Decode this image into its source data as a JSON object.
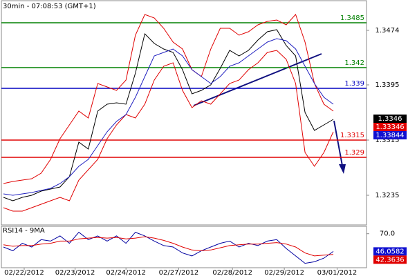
{
  "chart_data": [
    {
      "type": "line",
      "title": "30min - 07:08:53 (GMT+1)",
      "x": [
        0,
        1,
        2,
        3,
        4,
        5,
        6,
        7,
        8,
        9,
        10,
        11,
        12,
        13,
        14,
        15,
        16,
        17,
        18,
        19,
        20,
        21,
        22,
        23,
        24,
        25,
        26,
        27,
        28,
        29,
        30,
        31,
        32,
        33,
        34,
        35
      ],
      "xlim": [
        0,
        35
      ],
      "xticks": [
        {
          "value": 2.2,
          "label": "02/22/2012"
        },
        {
          "value": 7.6,
          "label": "02/23/2012"
        },
        {
          "value": 13,
          "label": "02/24/2012"
        },
        {
          "value": 18.6,
          "label": "02/27/2012"
        },
        {
          "value": 24.3,
          "label": "02/28/2012"
        },
        {
          "value": 29.8,
          "label": "02/29/2012"
        },
        {
          "value": 35.4,
          "label": "03/01/2012"
        }
      ],
      "ylim": [
        1.3192,
        1.3517
      ],
      "yticks": [
        1.3235,
        1.3315,
        1.3395,
        1.3474
      ],
      "series": [
        {
          "color": "#000000",
          "values": [
            1.3232,
            1.3227,
            1.3232,
            1.3235,
            1.3241,
            1.3244,
            1.3247,
            1.3262,
            1.3312,
            1.3302,
            1.3357,
            1.3367,
            1.3369,
            1.3367,
            1.3412,
            1.3469,
            1.3455,
            1.3447,
            1.3442,
            1.3417,
            1.3382,
            1.3387,
            1.3395,
            1.3419,
            1.3445,
            1.3437,
            1.3445,
            1.346,
            1.3472,
            1.3475,
            1.3452,
            1.3437,
            1.3355,
            1.3329,
            1.3337,
            1.3345
          ]
        },
        {
          "color": "#e00000",
          "values": [
            1.3252,
            1.3255,
            1.3257,
            1.3259,
            1.3267,
            1.3287,
            1.3317,
            1.3337,
            1.3357,
            1.3347,
            1.3397,
            1.3392,
            1.3387,
            1.3402,
            1.3467,
            1.3497,
            1.3492,
            1.3477,
            1.3457,
            1.3447,
            1.3417,
            1.3407,
            1.3447,
            1.3477,
            1.3477,
            1.3467,
            1.3472,
            1.3482,
            1.3487,
            1.3489,
            1.3482,
            1.3497,
            1.3457,
            1.3397,
            1.3367,
            1.3357
          ]
        },
        {
          "color": "#e00000",
          "values": [
            1.3217,
            1.3212,
            1.3212,
            1.3217,
            1.3222,
            1.3227,
            1.3232,
            1.3227,
            1.3257,
            1.3272,
            1.3287,
            1.3317,
            1.3337,
            1.3352,
            1.3347,
            1.3367,
            1.3402,
            1.3422,
            1.3427,
            1.3387,
            1.3362,
            1.3372,
            1.3367,
            1.3382,
            1.3397,
            1.3402,
            1.3417,
            1.3427,
            1.3442,
            1.3445,
            1.3432,
            1.3397,
            1.3297,
            1.3277,
            1.3297,
            1.3327
          ]
        },
        {
          "color": "#2020c0",
          "values": [
            1.3237,
            1.3235,
            1.3237,
            1.3239,
            1.3242,
            1.3245,
            1.3252,
            1.3262,
            1.3277,
            1.3287,
            1.3307,
            1.3327,
            1.3342,
            1.3352,
            1.3377,
            1.3407,
            1.3437,
            1.3442,
            1.3447,
            1.3437,
            1.3417,
            1.3407,
            1.3397,
            1.3407,
            1.3422,
            1.3427,
            1.3437,
            1.3447,
            1.3457,
            1.3462,
            1.3459,
            1.3447,
            1.3422,
            1.3397,
            1.3377,
            1.3367
          ]
        }
      ],
      "levels": [
        {
          "value": 1.3485,
          "color": "#008000"
        },
        {
          "value": 1.342,
          "color": "#008000"
        },
        {
          "value": 1.339,
          "color": "#0000c0"
        },
        {
          "value": 1.3315,
          "color": "#e00000"
        },
        {
          "value": 1.329,
          "color": "#e00000"
        }
      ],
      "markers": [
        {
          "value": 1.3346,
          "color": "#000000"
        },
        {
          "value": 1.33346,
          "color": "#e00000"
        },
        {
          "value": 1.33844,
          "color": "#1010d0"
        }
      ]
    },
    {
      "type": "line",
      "title": "RSI14 - 9MA",
      "ylim": [
        24,
        80
      ],
      "yticks": [
        {
          "value": 70,
          "label": "70.0"
        }
      ],
      "series": [
        {
          "color": "#0000a0",
          "values": [
            52,
            47,
            57,
            52,
            62,
            60,
            67,
            57,
            72,
            62,
            67,
            60,
            67,
            57,
            72,
            67,
            60,
            54,
            52,
            44,
            40,
            47,
            52,
            57,
            60,
            52,
            57,
            54,
            60,
            62,
            50,
            40,
            30,
            32,
            37,
            46
          ]
        },
        {
          "color": "#e00000",
          "values": [
            55,
            53,
            54,
            54,
            56,
            57,
            60,
            60,
            63,
            64,
            65,
            64,
            65,
            63,
            64,
            66,
            64,
            61,
            57,
            52,
            48,
            47,
            48,
            51,
            54,
            55,
            56,
            56,
            57,
            58,
            56,
            52,
            44,
            40,
            41,
            42
          ]
        }
      ],
      "markers": [
        {
          "value": 46.0582,
          "color": "#1010d0"
        },
        {
          "value": 42.3636,
          "color": "#e00000"
        }
      ]
    }
  ]
}
